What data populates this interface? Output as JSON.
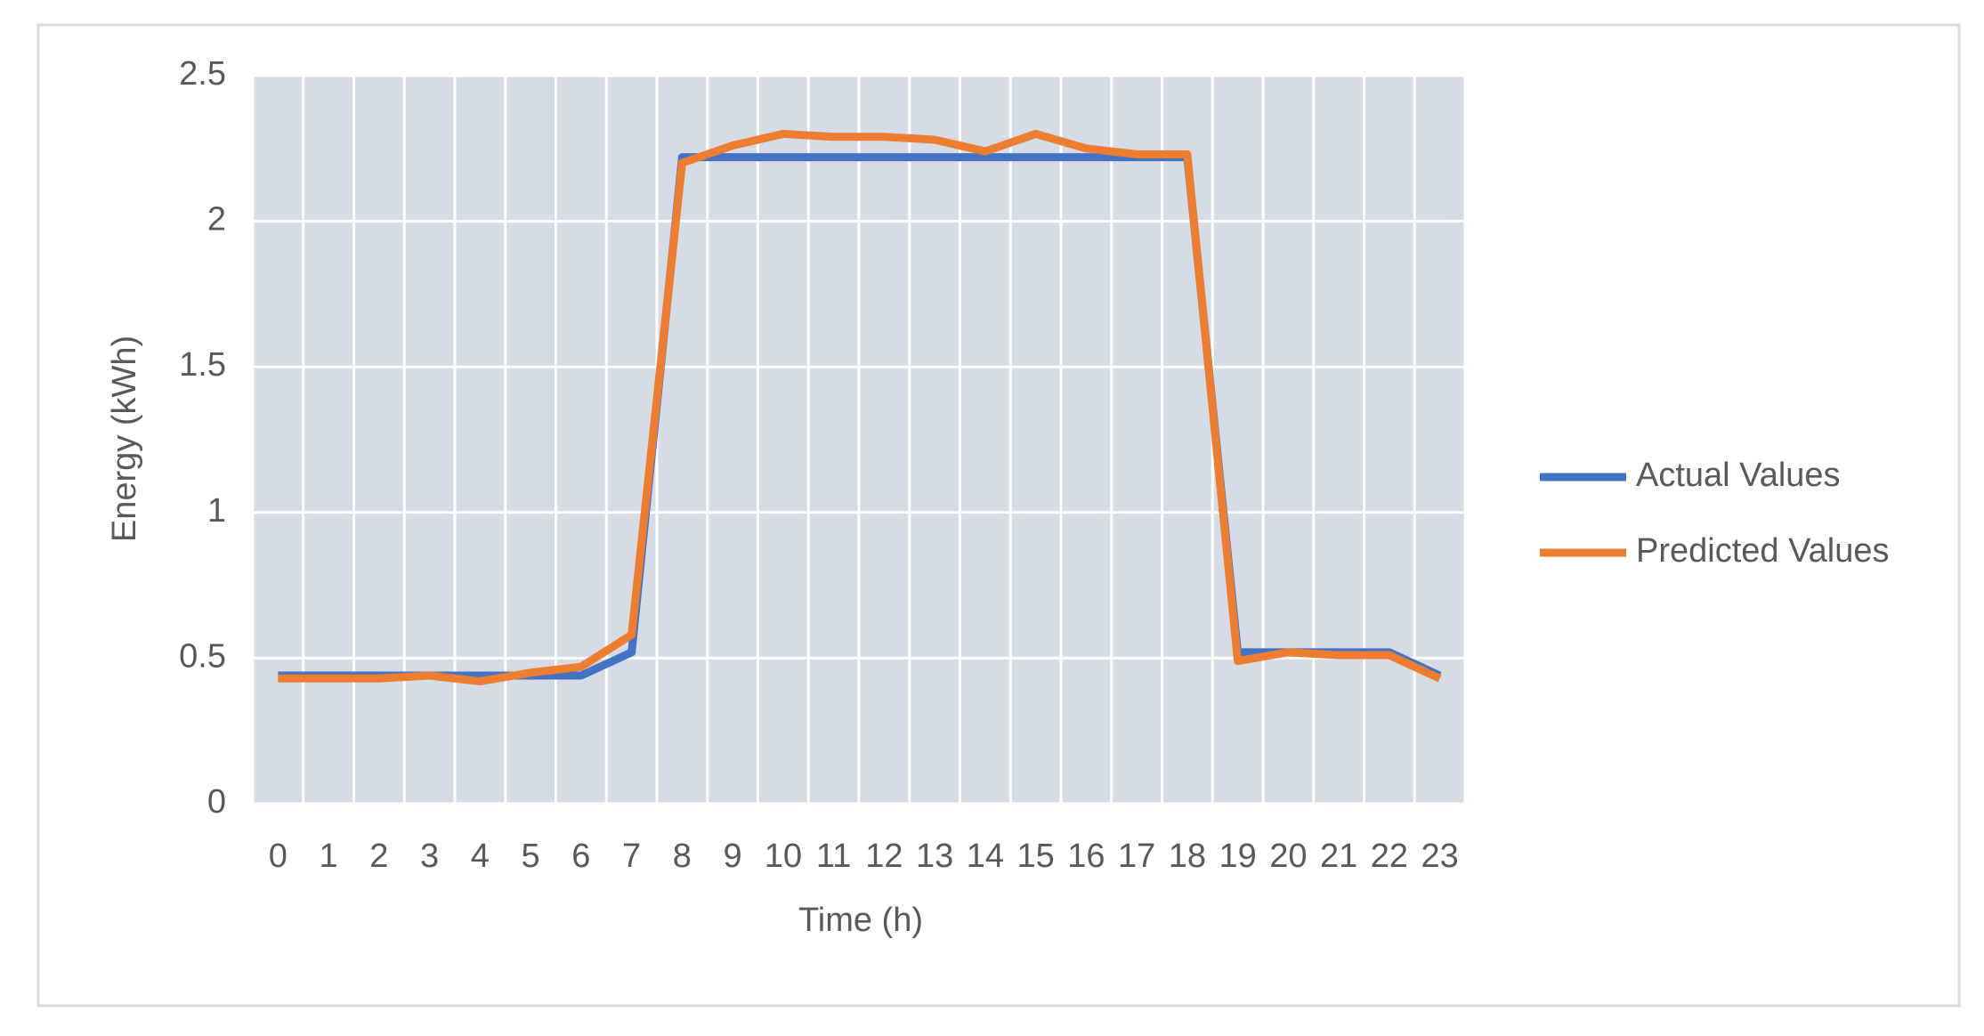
{
  "chart_data": {
    "type": "line",
    "x_label": "Time (h)",
    "y_label": "Energy (kWh)",
    "categories": [
      "0",
      "1",
      "2",
      "3",
      "4",
      "5",
      "6",
      "7",
      "8",
      "9",
      "10",
      "11",
      "12",
      "13",
      "14",
      "15",
      "16",
      "17",
      "18",
      "19",
      "20",
      "21",
      "22",
      "23"
    ],
    "series": [
      {
        "name": "Actual Values",
        "color": "#4472c4",
        "values": [
          0.44,
          0.44,
          0.44,
          0.44,
          0.44,
          0.44,
          0.44,
          0.52,
          2.22,
          2.22,
          2.22,
          2.22,
          2.22,
          2.22,
          2.22,
          2.22,
          2.22,
          2.22,
          2.22,
          0.52,
          0.52,
          0.52,
          0.52,
          0.44
        ]
      },
      {
        "name": "Predicted Values",
        "color": "#ed7d31",
        "values": [
          0.43,
          0.43,
          0.43,
          0.44,
          0.42,
          0.45,
          0.47,
          0.58,
          2.2,
          2.26,
          2.3,
          2.29,
          2.29,
          2.28,
          2.24,
          2.3,
          2.25,
          2.23,
          2.23,
          0.49,
          0.52,
          0.51,
          0.51,
          0.43
        ]
      }
    ],
    "ylim": [
      0,
      2.5
    ],
    "yticks": [
      0,
      0.5,
      1,
      1.5,
      2,
      2.5
    ],
    "grid": true,
    "legend": "right"
  }
}
